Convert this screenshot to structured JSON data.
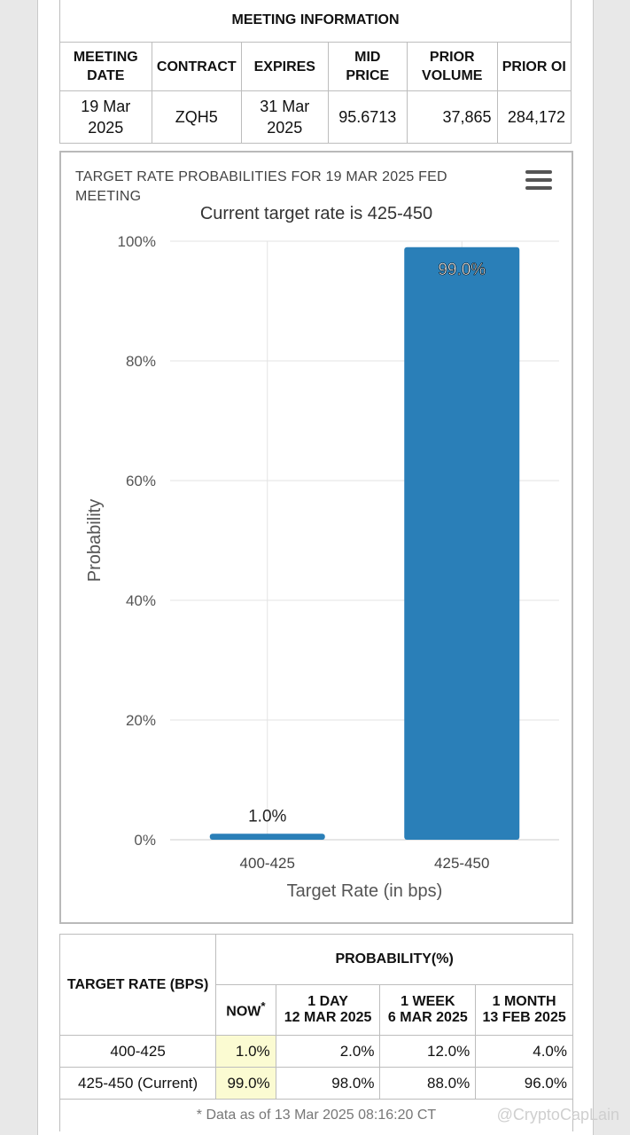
{
  "meeting_info": {
    "caption": "MEETING INFORMATION",
    "headers": [
      "MEETING DATE",
      "CONTRACT",
      "EXPIRES",
      "MID PRICE",
      "PRIOR VOLUME",
      "PRIOR OI"
    ],
    "values": [
      "19 Mar 2025",
      "ZQH5",
      "31 Mar 2025",
      "95.6713",
      "37,865",
      "284,172"
    ]
  },
  "chart_data": {
    "type": "bar",
    "title": "TARGET RATE PROBABILITIES FOR 19 MAR 2025 FED MEETING",
    "subtitle": "Current target rate is 425-450",
    "xlabel": "Target Rate (in bps)",
    "ylabel": "Probability",
    "categories": [
      "400-425",
      "425-450"
    ],
    "values": [
      1.0,
      99.0
    ],
    "data_labels": [
      "1.0%",
      "99.0%"
    ],
    "ylim": [
      0,
      100
    ],
    "yticks": [
      "0%",
      "20%",
      "40%",
      "60%",
      "80%",
      "100%"
    ],
    "grid": true,
    "bar_color": "#2a7fb8"
  },
  "probability_table": {
    "col_rate": "TARGET RATE (BPS)",
    "col_prob": "PROBABILITY(%)",
    "now_label": "NOW",
    "now_mark": "*",
    "periods": [
      {
        "label": "1 DAY",
        "date": "12 MAR 2025"
      },
      {
        "label": "1 WEEK",
        "date": "6 MAR 2025"
      },
      {
        "label": "1 MONTH",
        "date": "13 FEB 2025"
      }
    ],
    "rows": [
      {
        "rate": "400-425",
        "now": "1.0%",
        "day": "2.0%",
        "week": "12.0%",
        "month": "4.0%"
      },
      {
        "rate": "425-450 (Current)",
        "now": "99.0%",
        "day": "98.0%",
        "week": "88.0%",
        "month": "96.0%"
      }
    ],
    "footnote": "* Data as of 13 Mar 2025 08:16:20 CT"
  },
  "watermark": "@CryptoCapLain"
}
